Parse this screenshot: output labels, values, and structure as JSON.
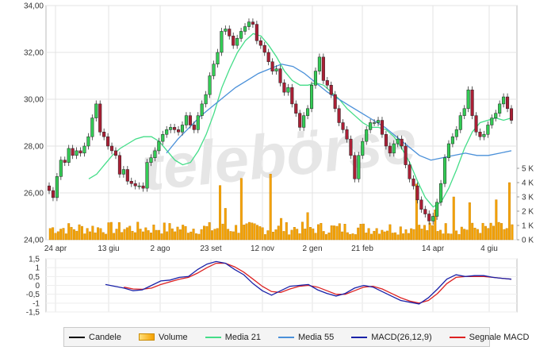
{
  "chart_data": [
    {
      "type": "candlestick",
      "panel": "price",
      "x_ticks": [
        "24 apr",
        "13 giu",
        "2 ago",
        "23 set",
        "12 nov",
        "2 gen",
        "21 feb",
        "14 apr",
        "4 giu"
      ],
      "y_ticks": [
        "34,00",
        "32,00",
        "30,00",
        "28,00",
        "26,00",
        "24,00"
      ],
      "ylim": [
        24,
        34
      ],
      "volume_ticks": [
        "5 K",
        "4 K",
        "3 K",
        "2 K",
        "1 K",
        "0 K"
      ],
      "volume_lim": [
        0,
        5000
      ],
      "watermark": "telebörse",
      "series": [
        {
          "name": "Candele",
          "color": "#000000",
          "close": [
            26.1,
            25.8,
            26.7,
            27.4,
            27.3,
            27.9,
            27.6,
            27.8,
            27.7,
            28.0,
            28.4,
            29.2,
            29.8,
            28.6,
            28.4,
            28.0,
            27.8,
            27.6,
            26.8,
            27.0,
            26.5,
            26.4,
            26.3,
            26.3,
            26.2,
            27.3,
            27.5,
            27.8,
            28.2,
            28.5,
            28.7,
            28.8,
            28.7,
            28.6,
            28.9,
            29.3,
            28.9,
            28.7,
            29.3,
            29.8,
            30.2,
            31.0,
            31.5,
            32.0,
            32.9,
            33.0,
            32.7,
            32.3,
            32.6,
            32.9,
            33.1,
            33.3,
            33.2,
            32.5,
            32.3,
            32.0,
            31.6,
            31.2,
            31.3,
            30.7,
            30.3,
            30.5,
            29.8,
            29.4,
            28.8,
            29.3,
            29.6,
            30.6,
            31.2,
            31.8,
            30.8,
            30.6,
            30.2,
            29.6,
            29.0,
            28.7,
            28.3,
            27.6,
            26.6,
            27.6,
            28.2,
            28.7,
            29.0,
            29.0,
            29.1,
            28.5,
            28.0,
            27.7,
            28.1,
            28.3,
            28.0,
            27.2,
            26.6,
            26.3,
            25.7,
            25.3,
            25.1,
            24.8,
            25.0,
            25.6,
            26.4,
            27.5,
            28.1,
            28.4,
            28.7,
            29.3,
            29.6,
            30.4,
            29.3,
            28.6,
            28.4,
            28.5,
            28.9,
            29.2,
            29.4,
            29.8,
            30.1,
            29.6,
            29.1
          ],
          "note": "approximate daily closes, Apr to Jun"
        },
        {
          "name": "Media 21",
          "color": "#44dd88",
          "values": [
            26.6,
            26.8,
            27.2,
            27.6,
            27.9,
            28.1,
            28.3,
            28.4,
            28.4,
            28.2,
            27.8,
            27.4,
            27.2,
            27.3,
            27.8,
            28.5,
            29.4,
            30.5,
            31.3,
            32.0,
            32.5,
            32.8,
            32.7,
            32.3,
            31.8,
            31.2,
            30.8,
            30.6,
            30.6,
            30.7,
            30.6,
            30.3,
            30.0,
            29.6,
            29.3,
            29.0,
            28.8,
            28.8,
            28.7,
            28.4,
            27.9,
            27.3,
            26.5,
            25.8,
            25.4,
            25.6,
            26.2,
            27.0,
            27.9,
            28.6,
            29.0,
            29.1,
            29.2,
            29.1,
            29.2
          ]
        },
        {
          "name": "Media 55",
          "color": "#4a90d9",
          "values": [
            27.7,
            28.3,
            28.8,
            29.3,
            29.7,
            30.1,
            30.5,
            30.8,
            31.1,
            31.3,
            31.5,
            31.4,
            31.1,
            30.7,
            30.3,
            30.0,
            29.7,
            29.4,
            29.1,
            28.8,
            28.4,
            28.0,
            27.6,
            27.4,
            27.5,
            27.6,
            27.7,
            27.6,
            27.6,
            27.7,
            27.8
          ]
        }
      ]
    },
    {
      "type": "line",
      "panel": "macd",
      "y_ticks": [
        "1,5",
        "1",
        "0,5",
        "0",
        "-0,5",
        "-1",
        "-1,5"
      ],
      "ylim": [
        -1.5,
        1.5
      ],
      "series": [
        {
          "name": "MACD(26,12,9)",
          "color": "#1a22a8",
          "values": [
            0.05,
            -0.05,
            -0.15,
            -0.3,
            -0.25,
            0.0,
            0.25,
            0.3,
            0.45,
            0.5,
            0.9,
            1.2,
            1.35,
            1.25,
            0.9,
            0.6,
            0.1,
            -0.3,
            -0.55,
            -0.3,
            -0.05,
            0.0,
            0.05,
            -0.25,
            -0.45,
            -0.6,
            -0.45,
            -0.15,
            0.0,
            -0.1,
            -0.35,
            -0.6,
            -0.85,
            -0.95,
            -1.05,
            -0.7,
            -0.2,
            0.35,
            0.6,
            0.5,
            0.55,
            0.55,
            0.45,
            0.4,
            0.35
          ]
        },
        {
          "name": "Segnale MACD",
          "color": "#dd2222",
          "values": [
            null,
            null,
            -0.1,
            -0.2,
            -0.22,
            -0.15,
            0.05,
            0.2,
            0.35,
            0.45,
            0.7,
            1.0,
            1.25,
            1.25,
            1.05,
            0.75,
            0.35,
            -0.05,
            -0.35,
            -0.4,
            -0.2,
            -0.05,
            0.0,
            -0.1,
            -0.3,
            -0.5,
            -0.5,
            -0.3,
            -0.1,
            -0.05,
            -0.2,
            -0.45,
            -0.7,
            -0.88,
            -1.0,
            -0.85,
            -0.45,
            0.1,
            0.45,
            0.5,
            0.5,
            0.5,
            0.45,
            0.4,
            0.35
          ]
        }
      ]
    }
  ],
  "legend": [
    {
      "key": "candele",
      "label": "Candele",
      "color": "#000000",
      "style": "line"
    },
    {
      "key": "volume",
      "label": "Volume",
      "color": "#f5a000",
      "style": "bar"
    },
    {
      "key": "media21",
      "label": "Media 21",
      "color": "#44dd88",
      "style": "line"
    },
    {
      "key": "media55",
      "label": "Media 55",
      "color": "#4a90d9",
      "style": "line"
    },
    {
      "key": "macd",
      "label": "MACD(26,12,9)",
      "color": "#1a22a8",
      "style": "line"
    },
    {
      "key": "segnale",
      "label": "Segnale MACD",
      "color": "#dd2222",
      "style": "line"
    }
  ]
}
